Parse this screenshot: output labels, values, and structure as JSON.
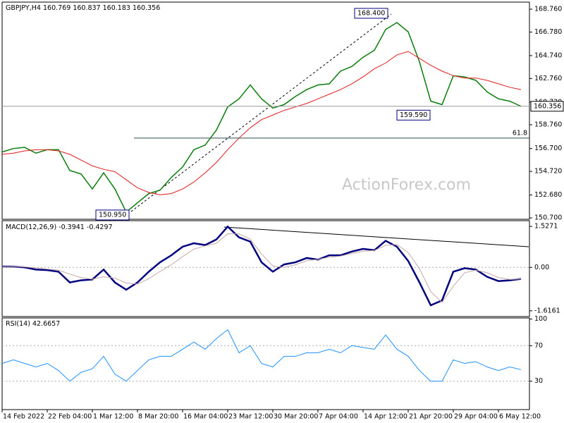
{
  "chart_data": [
    {
      "type": "line",
      "title": "GBPJPY,H4",
      "ohlc": [
        160.769,
        160.837,
        160.183,
        160.356
      ],
      "ylim": [
        150.58,
        169.37
      ],
      "yticks": [
        {
          "value": 168.76,
          "label": "168.760"
        },
        {
          "value": 166.78,
          "label": "166.780"
        },
        {
          "value": 164.74,
          "label": "164.740"
        },
        {
          "value": 162.76,
          "label": "162.760"
        },
        {
          "value": 160.72,
          "label": "160.720"
        },
        {
          "value": 158.76,
          "label": "158.760"
        },
        {
          "value": 156.7,
          "label": "156.700"
        },
        {
          "value": 154.72,
          "label": "154.720"
        },
        {
          "value": 152.68,
          "label": "152.680"
        },
        {
          "value": 150.7,
          "label": "150.700"
        }
      ],
      "series": [
        {
          "color": "#0a7d0a",
          "values": [
            156.4,
            156.7,
            156.8,
            156.3,
            156.6,
            156.6,
            154.8,
            154.5,
            153.2,
            154.6,
            153.2,
            151.2,
            152.0,
            152.8,
            153.1,
            154.2,
            155.1,
            156.6,
            157.0,
            158.3,
            160.3,
            161.0,
            162.2,
            161.0,
            160.2,
            160.5,
            161.2,
            161.8,
            162.2,
            162.3,
            163.4,
            163.8,
            164.6,
            165.2,
            167.0,
            167.6,
            166.8,
            164.2,
            160.8,
            160.5,
            163.0,
            162.9,
            162.6,
            161.6,
            161.0,
            160.8,
            160.356
          ]
        },
        {
          "color": "#e31a1c",
          "values": [
            156.2,
            156.3,
            156.5,
            156.6,
            156.6,
            156.5,
            156.2,
            155.7,
            155.2,
            154.9,
            154.7,
            154.0,
            153.3,
            152.9,
            152.7,
            152.8,
            153.2,
            153.8,
            154.6,
            155.5,
            156.6,
            157.6,
            158.5,
            159.2,
            159.6,
            160.0,
            160.3,
            160.6,
            161.0,
            161.4,
            161.8,
            162.3,
            162.9,
            163.6,
            164.1,
            164.8,
            165.1,
            164.5,
            163.9,
            163.4,
            163.0,
            162.8,
            162.8,
            162.6,
            162.3,
            162.0,
            161.8
          ]
        }
      ],
      "annotations": [
        {
          "value": 168.4,
          "label": "168.400"
        },
        {
          "value": 159.59,
          "label": "159.590"
        },
        {
          "value": 150.95,
          "label": "150.950"
        }
      ],
      "fib_line": {
        "label": 61.8,
        "price": 157.6
      },
      "watermark": "ActionForex.com"
    },
    {
      "type": "line",
      "title": "MACD(12,26,9)",
      "readings": [
        -0.3941,
        -0.4297
      ],
      "ylim": [
        -1.83,
        1.74
      ],
      "yticks": [
        1.5271,
        {
          "value": 0,
          "label": "0.00"
        },
        -1.6161
      ],
      "series": [
        {
          "color": "#00007f",
          "values": [
            0.03,
            0.03,
            0,
            -0.08,
            -0.1,
            -0.16,
            -0.56,
            -0.48,
            -0.45,
            -0.08,
            -0.56,
            -0.83,
            -0.56,
            -0.16,
            0.19,
            0.45,
            0.77,
            0.9,
            0.83,
            1.04,
            1.52,
            1.12,
            0.96,
            0.19,
            -0.16,
            0.11,
            0.19,
            0.35,
            0.29,
            0.45,
            0.45,
            0.59,
            0.69,
            0.64,
            0.99,
            0.77,
            0.24,
            -0.56,
            -1.41,
            -1.23,
            -0.16,
            -0.03,
            -0.08,
            -0.35,
            -0.51,
            -0.48,
            -0.43
          ]
        },
        {
          "color": "#c8a8a8",
          "values": [
            0.02,
            0.03,
            0.02,
            -0.02,
            -0.06,
            -0.1,
            -0.25,
            -0.38,
            -0.44,
            -0.35,
            -0.4,
            -0.58,
            -0.62,
            -0.42,
            -0.15,
            0.1,
            0.4,
            0.68,
            0.8,
            0.9,
            1.25,
            1.25,
            1.05,
            0.5,
            0.05,
            0.0,
            0.1,
            0.25,
            0.3,
            0.38,
            0.42,
            0.52,
            0.6,
            0.63,
            0.82,
            0.85,
            0.55,
            -0.05,
            -0.9,
            -1.3,
            -0.7,
            -0.2,
            -0.1,
            -0.2,
            -0.38,
            -0.45,
            -0.43
          ]
        }
      ]
    },
    {
      "type": "line",
      "title": "RSI(14)",
      "readings": [
        42.6657
      ],
      "ylim": [
        -2,
        101.2
      ],
      "yticks": [
        100,
        70,
        30
      ],
      "series": [
        {
          "color": "#1e90ff",
          "values": [
            50,
            54,
            50,
            46,
            50,
            42,
            30,
            40,
            44,
            58,
            38,
            30,
            42,
            54,
            58,
            58,
            66,
            74,
            66,
            78,
            88,
            62,
            70,
            50,
            46,
            58,
            58,
            62,
            62,
            66,
            62,
            70,
            68,
            66,
            82,
            66,
            58,
            42,
            30,
            30,
            54,
            50,
            52,
            46,
            42,
            46,
            43
          ]
        }
      ],
      "categories": [
        "14 Feb 2022",
        null,
        null,
        null,
        "22 Feb 04:00",
        null,
        null,
        null,
        "1 Mar 12:00",
        null,
        null,
        null,
        "8 Mar 20:00",
        null,
        null,
        null,
        "16 Mar 04:00",
        null,
        null,
        null,
        "23 Mar 12:00",
        null,
        null,
        null,
        "30 Mar 20:00",
        null,
        null,
        null,
        "7 Apr 04:00",
        null,
        null,
        null,
        "14 Apr 12:00",
        null,
        null,
        null,
        "21 Apr 20:00",
        null,
        null,
        null,
        "29 Apr 04:00",
        null,
        null,
        null,
        "6 May 12:00",
        null,
        null
      ]
    }
  ]
}
